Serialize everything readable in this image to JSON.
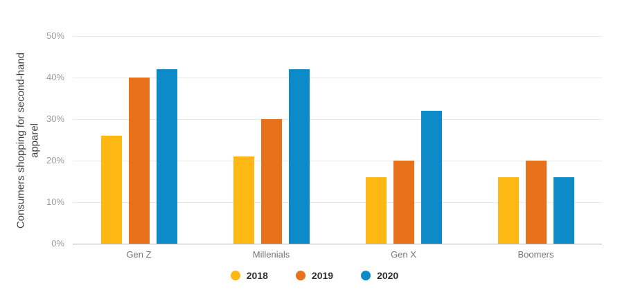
{
  "chart_data": {
    "type": "bar",
    "title": "",
    "ylabel": "Consumers shopping for second-hand apparel",
    "ylabel_lines": [
      "Consumers shopping for second-hand",
      "apparel"
    ],
    "xlabel": "",
    "categories": [
      "Gen Z",
      "Millenials",
      "Gen X",
      "Boomers"
    ],
    "series": [
      {
        "name": "2018",
        "color": "#FDB813",
        "values": [
          26,
          21,
          16,
          16
        ]
      },
      {
        "name": "2019",
        "color": "#E8711C",
        "values": [
          40,
          30,
          20,
          20
        ]
      },
      {
        "name": "2020",
        "color": "#0D8BC9",
        "values": [
          42,
          42,
          32,
          16
        ]
      }
    ],
    "y_ticks": [
      "0%",
      "10%",
      "20%",
      "30%",
      "40%",
      "50%"
    ],
    "ylim": [
      0,
      50
    ],
    "grid": "horizontal-only",
    "legend_position": "bottom",
    "colors": {
      "gridline": "#e7e7e7",
      "axis_line": "#b0b0b0",
      "tick_label": "#9b9b9b",
      "category_label": "#757575",
      "y_title": "#3f3f3f",
      "legend_text": "#2e2e2e",
      "background": "#ffffff"
    }
  }
}
